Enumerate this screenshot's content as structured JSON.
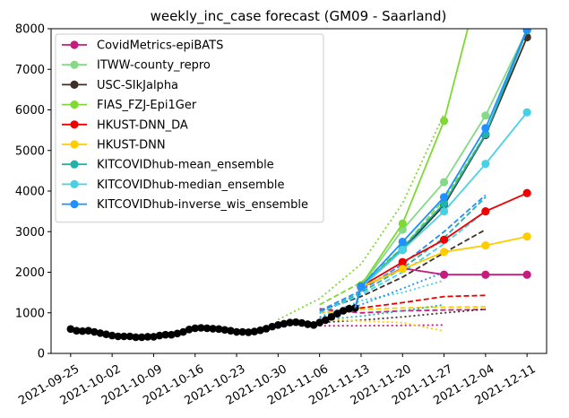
{
  "chart_data": {
    "type": "line",
    "title": "weekly_inc_case forecast (GM09 - Saarland)",
    "xlabel": "",
    "ylabel": "",
    "ylim": [
      0,
      8000
    ],
    "grid": false,
    "legend_position": "top-left",
    "x_ticks": [
      "2021-09-25",
      "2021-10-02",
      "2021-10-09",
      "2021-10-16",
      "2021-10-23",
      "2021-10-30",
      "2021-11-06",
      "2021-11-13",
      "2021-11-20",
      "2021-11-27",
      "2021-12-04",
      "2021-12-11"
    ],
    "y_ticks": [
      0,
      1000,
      2000,
      3000,
      4000,
      5000,
      6000,
      7000,
      8000
    ],
    "observed": {
      "color": "#000000",
      "points": [
        [
          "2021-09-25",
          600
        ],
        [
          "2021-09-26",
          560
        ],
        [
          "2021-09-27",
          550
        ],
        [
          "2021-09-28",
          560
        ],
        [
          "2021-09-29",
          530
        ],
        [
          "2021-09-30",
          500
        ],
        [
          "2021-10-01",
          470
        ],
        [
          "2021-10-02",
          440
        ],
        [
          "2021-10-03",
          420
        ],
        [
          "2021-10-04",
          420
        ],
        [
          "2021-10-05",
          420
        ],
        [
          "2021-10-06",
          400
        ],
        [
          "2021-10-07",
          400
        ],
        [
          "2021-10-08",
          410
        ],
        [
          "2021-10-09",
          410
        ],
        [
          "2021-10-10",
          440
        ],
        [
          "2021-10-11",
          460
        ],
        [
          "2021-10-12",
          460
        ],
        [
          "2021-10-13",
          490
        ],
        [
          "2021-10-14",
          530
        ],
        [
          "2021-10-15",
          590
        ],
        [
          "2021-10-16",
          620
        ],
        [
          "2021-10-17",
          630
        ],
        [
          "2021-10-18",
          620
        ],
        [
          "2021-10-19",
          610
        ],
        [
          "2021-10-20",
          600
        ],
        [
          "2021-10-21",
          580
        ],
        [
          "2021-10-22",
          560
        ],
        [
          "2021-10-23",
          530
        ],
        [
          "2021-10-24",
          530
        ],
        [
          "2021-10-25",
          520
        ],
        [
          "2021-10-26",
          540
        ],
        [
          "2021-10-27",
          570
        ],
        [
          "2021-10-28",
          610
        ],
        [
          "2021-10-29",
          660
        ],
        [
          "2021-10-30",
          700
        ],
        [
          "2021-10-31",
          730
        ],
        [
          "2021-11-01",
          760
        ],
        [
          "2021-11-02",
          770
        ],
        [
          "2021-11-03",
          750
        ],
        [
          "2021-11-04",
          720
        ],
        [
          "2021-11-05",
          700
        ],
        [
          "2021-11-06",
          760
        ],
        [
          "2021-11-07",
          820
        ],
        [
          "2021-11-08",
          900
        ],
        [
          "2021-11-09",
          980
        ],
        [
          "2021-11-10",
          1050
        ],
        [
          "2021-11-11",
          1100
        ],
        [
          "2021-11-12",
          1120
        ]
      ]
    },
    "series": [
      {
        "name": "CovidMetrics-epiBATS",
        "color": "#c51b7d",
        "points": [
          [
            "2021-11-13",
            1620
          ],
          [
            "2021-11-20",
            2100
          ],
          [
            "2021-11-27",
            1940
          ],
          [
            "2021-12-04",
            1940
          ],
          [
            "2021-12-11",
            1940
          ]
        ],
        "dashed": [
          [
            "2021-11-06",
            1100
          ],
          [
            "2021-11-13",
            1000
          ],
          [
            "2021-11-20",
            1050
          ],
          [
            "2021-11-27",
            1070
          ],
          [
            "2021-12-04",
            1080
          ]
        ],
        "dotted": [
          [
            "2021-11-06",
            680
          ],
          [
            "2021-11-13",
            680
          ],
          [
            "2021-11-20",
            690
          ],
          [
            "2021-11-27",
            700
          ]
        ]
      },
      {
        "name": "ITWW-county_repro",
        "color": "#86d986",
        "points": [
          [
            "2021-11-13",
            1650
          ],
          [
            "2021-11-20",
            3050
          ],
          [
            "2021-11-27",
            4220
          ],
          [
            "2021-12-04",
            5860
          ],
          [
            "2021-12-11",
            7970
          ]
        ],
        "dashed": [],
        "dotted": []
      },
      {
        "name": "USC-SIkJalpha",
        "color": "#3d3028",
        "points": [
          [
            "2021-11-13",
            1630
          ],
          [
            "2021-11-20",
            2550
          ],
          [
            "2021-11-27",
            3650
          ],
          [
            "2021-12-04",
            5380
          ],
          [
            "2021-12-11",
            7790
          ]
        ],
        "dashed": [
          [
            "2021-11-06",
            1050
          ],
          [
            "2021-11-13",
            1400
          ],
          [
            "2021-11-20",
            1880
          ],
          [
            "2021-11-27",
            2480
          ],
          [
            "2021-12-04",
            3050
          ]
        ],
        "dotted": [
          [
            "2021-11-06",
            760
          ],
          [
            "2021-11-13",
            820
          ],
          [
            "2021-11-20",
            900
          ],
          [
            "2021-11-27",
            1000
          ],
          [
            "2021-12-04",
            1090
          ]
        ]
      },
      {
        "name": "FIAS_FZJ-Epi1Ger",
        "color": "#7fd934",
        "points": [
          [
            "2021-11-13",
            1680
          ],
          [
            "2021-11-20",
            3200
          ],
          [
            "2021-11-27",
            5730
          ],
          [
            "2021-12-01",
            8000
          ]
        ],
        "dashed": [
          [
            "2021-11-06",
            1200
          ],
          [
            "2021-11-13",
            1750
          ],
          [
            "2021-11-20",
            2600
          ],
          [
            "2021-11-27",
            3800
          ],
          [
            "2021-12-04",
            5400
          ]
        ],
        "dotted": [
          [
            "2021-10-30",
            830
          ],
          [
            "2021-11-06",
            1350
          ],
          [
            "2021-11-13",
            2200
          ],
          [
            "2021-11-20",
            3700
          ],
          [
            "2021-11-27",
            5900
          ]
        ]
      },
      {
        "name": "HKUST-DNN_DA",
        "color": "#ee0000",
        "points": [
          [
            "2021-11-13",
            1650
          ],
          [
            "2021-11-20",
            2250
          ],
          [
            "2021-11-27",
            2800
          ],
          [
            "2021-12-04",
            3500
          ],
          [
            "2021-12-11",
            3950
          ]
        ],
        "dashed": [
          [
            "2021-11-06",
            1000
          ],
          [
            "2021-11-13",
            1120
          ],
          [
            "2021-11-20",
            1250
          ],
          [
            "2021-11-27",
            1400
          ],
          [
            "2021-12-04",
            1430
          ]
        ],
        "dotted": []
      },
      {
        "name": "HKUST-DNN",
        "color": "#ffcc00",
        "points": [
          [
            "2021-11-13",
            1640
          ],
          [
            "2021-11-20",
            2080
          ],
          [
            "2021-11-27",
            2500
          ],
          [
            "2021-12-04",
            2660
          ],
          [
            "2021-12-11",
            2880
          ]
        ],
        "dashed": [
          [
            "2021-11-06",
            1000
          ],
          [
            "2021-11-13",
            1080
          ],
          [
            "2021-11-20",
            1120
          ],
          [
            "2021-11-27",
            1140
          ],
          [
            "2021-12-04",
            1150
          ]
        ],
        "dotted": [
          [
            "2021-11-06",
            850
          ],
          [
            "2021-11-13",
            800
          ],
          [
            "2021-11-20",
            760
          ],
          [
            "2021-11-27",
            550
          ]
        ]
      },
      {
        "name": "KITCOVIDhub-mean_ensemble",
        "color": "#20b2aa",
        "points": [
          [
            "2021-11-13",
            1640
          ],
          [
            "2021-11-20",
            2600
          ],
          [
            "2021-11-27",
            3700
          ],
          [
            "2021-12-04",
            5400
          ],
          [
            "2021-12-11",
            7960
          ]
        ],
        "dashed": [
          [
            "2021-11-06",
            1000
          ],
          [
            "2021-11-13",
            1500
          ],
          [
            "2021-11-20",
            2100
          ],
          [
            "2021-11-27",
            2850
          ],
          [
            "2021-12-04",
            3850
          ]
        ],
        "dotted": [
          [
            "2021-11-06",
            820
          ],
          [
            "2021-11-13",
            920
          ],
          [
            "2021-11-20",
            1050
          ],
          [
            "2021-11-27",
            1200
          ]
        ]
      },
      {
        "name": "KITCOVIDhub-median_ensemble",
        "color": "#48d1e6",
        "points": [
          [
            "2021-11-13",
            1630
          ],
          [
            "2021-11-20",
            2550
          ],
          [
            "2021-11-27",
            3500
          ],
          [
            "2021-12-04",
            4670
          ],
          [
            "2021-12-11",
            5940
          ]
        ],
        "dashed": [
          [
            "2021-11-06",
            1000
          ],
          [
            "2021-11-13",
            1450
          ],
          [
            "2021-11-20",
            2000
          ],
          [
            "2021-11-27",
            2700
          ],
          [
            "2021-12-04",
            3500
          ]
        ],
        "dotted": [
          [
            "2021-11-06",
            900
          ],
          [
            "2021-11-13",
            1300
          ],
          [
            "2021-11-20",
            1500
          ],
          [
            "2021-11-27",
            1800
          ]
        ]
      },
      {
        "name": "KITCOVIDhub-inverse_wis_ensemble",
        "color": "#1e90ff",
        "points": [
          [
            "2021-11-13",
            1650
          ],
          [
            "2021-11-20",
            2750
          ],
          [
            "2021-11-27",
            3850
          ],
          [
            "2021-12-04",
            5550
          ],
          [
            "2021-12-11",
            7990
          ]
        ],
        "dashed": [
          [
            "2021-11-06",
            1050
          ],
          [
            "2021-11-13",
            1550
          ],
          [
            "2021-11-20",
            2200
          ],
          [
            "2021-11-27",
            3000
          ],
          [
            "2021-12-04",
            3900
          ]
        ],
        "dotted": [
          [
            "2021-11-06",
            880
          ],
          [
            "2021-11-13",
            1200
          ],
          [
            "2021-11-20",
            1600
          ],
          [
            "2021-11-27",
            2000
          ]
        ]
      }
    ]
  }
}
